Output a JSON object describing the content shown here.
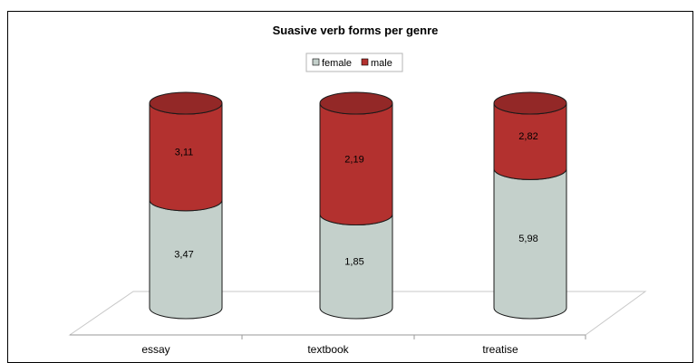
{
  "chart_data": {
    "type": "bar",
    "stacked": true,
    "style": "3d-cylinder",
    "title": "Suasive verb forms per genre",
    "xlabel": "",
    "ylabel": "",
    "categories": [
      "essay",
      "textbook",
      "treatise"
    ],
    "series": [
      {
        "name": "female",
        "values": [
          3.47,
          1.85,
          5.98
        ],
        "labels": [
          "3,47",
          "1,85",
          "5,98"
        ],
        "color": "#c4d0cb"
      },
      {
        "name": "male",
        "values": [
          3.11,
          2.19,
          2.82
        ],
        "labels": [
          "3,11",
          "2,19",
          "2,82"
        ],
        "color": "#b3312f"
      }
    ],
    "legend_position": "top-center",
    "grid": false
  }
}
